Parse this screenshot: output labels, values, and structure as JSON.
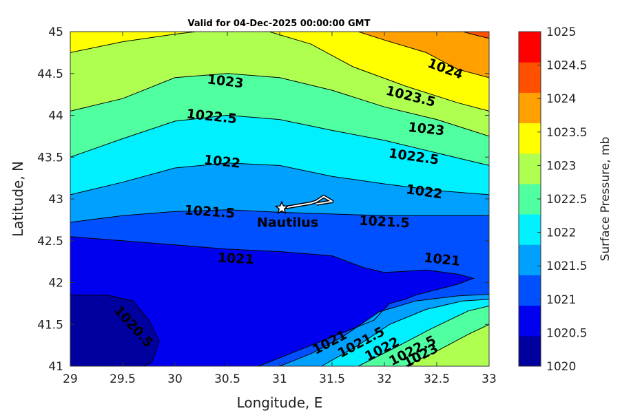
{
  "chart_data": {
    "type": "contour",
    "title": "Valid for 04-Dec-2025 00:00:00 GMT",
    "xlabel": "Longitude, E",
    "ylabel": "Latitude, N",
    "xlim": [
      29,
      33
    ],
    "ylim": [
      41,
      45
    ],
    "x_ticks": [
      "29",
      "29.5",
      "30",
      "30.5",
      "31",
      "31.5",
      "32",
      "32.5",
      "33"
    ],
    "y_ticks": [
      "41",
      "41.5",
      "42",
      "42.5",
      "43",
      "43.5",
      "44",
      "44.5",
      "45"
    ],
    "colorbar": {
      "label": "Surface Pressure, mb",
      "ticks": [
        "1020",
        "1020.5",
        "1021",
        "1021.5",
        "1022",
        "1022.5",
        "1023",
        "1023.5",
        "1024",
        "1024.5",
        "1025"
      ],
      "colors": [
        "#00009f",
        "#0000ef",
        "#0050ff",
        "#00a0ff",
        "#00f0ff",
        "#50ffa0",
        "#afff50",
        "#ffff00",
        "#ffa000",
        "#ff5000",
        "#ff0000"
      ]
    },
    "contours": [
      {
        "level": 1020.5,
        "points": [
          [
            29,
            41.85
          ],
          [
            29.35,
            41.85
          ],
          [
            29.6,
            41.78
          ],
          [
            29.75,
            41.55
          ],
          [
            29.85,
            41.3
          ],
          [
            29.78,
            41.05
          ],
          [
            29.7,
            41
          ]
        ],
        "labels": [
          {
            "text": "1020.5",
            "lon": 29.6,
            "lat": 41.47,
            "angle": 48
          }
        ]
      },
      {
        "level": 1021,
        "points": [
          [
            29,
            42.55
          ],
          [
            29.5,
            42.5
          ],
          [
            30,
            42.45
          ],
          [
            30.5,
            42.4
          ],
          [
            31,
            42.37
          ],
          [
            31.5,
            42.32
          ],
          [
            31.8,
            42.18
          ],
          [
            32,
            42.12
          ],
          [
            32.4,
            42.15
          ],
          [
            32.7,
            42.1
          ],
          [
            32.85,
            42.05
          ],
          [
            32.7,
            41.98
          ],
          [
            32.45,
            41.9
          ],
          [
            32.3,
            41.85
          ],
          [
            32.2,
            41.8
          ],
          [
            32.05,
            41.75
          ],
          [
            31.9,
            41.55
          ],
          [
            31.6,
            41.4
          ],
          [
            31.3,
            41.25
          ],
          [
            31.1,
            41.15
          ],
          [
            30.9,
            41.05
          ],
          [
            30.8,
            41
          ]
        ],
        "labels": [
          {
            "text": "1021",
            "lon": 30.58,
            "lat": 42.28,
            "angle": 3
          },
          {
            "text": "1021",
            "lon": 32.55,
            "lat": 42.27,
            "angle": 6
          },
          {
            "text": "1021",
            "lon": 31.48,
            "lat": 41.28,
            "angle": -28
          }
        ]
      },
      {
        "level": 1021.5,
        "points": [
          [
            29,
            42.72
          ],
          [
            29.5,
            42.8
          ],
          [
            30,
            42.85
          ],
          [
            30.5,
            42.87
          ],
          [
            31,
            42.84
          ],
          [
            31.5,
            42.82
          ],
          [
            32,
            42.8
          ],
          [
            32.5,
            42.8
          ],
          [
            33,
            42.8
          ]
        ],
        "labels": [
          {
            "text": "1021.5",
            "lon": 30.33,
            "lat": 42.84,
            "angle": 4
          },
          {
            "text": "1021.5",
            "lon": 32.0,
            "lat": 42.72,
            "angle": 3
          }
        ]
      },
      {
        "level": 1022,
        "points": [
          [
            29,
            43.05
          ],
          [
            29.5,
            43.2
          ],
          [
            30,
            43.37
          ],
          [
            30.5,
            43.43
          ],
          [
            31,
            43.4
          ],
          [
            31.5,
            43.27
          ],
          [
            32,
            43.18
          ],
          [
            32.5,
            43.1
          ],
          [
            33,
            43.05
          ]
        ],
        "labels": [
          {
            "text": "1022",
            "lon": 30.45,
            "lat": 43.44,
            "angle": 6
          },
          {
            "text": "1022",
            "lon": 32.38,
            "lat": 43.08,
            "angle": 8
          }
        ]
      },
      {
        "level": 1022.5,
        "points": [
          [
            29,
            43.5
          ],
          [
            29.5,
            43.72
          ],
          [
            30,
            43.93
          ],
          [
            30.5,
            44.0
          ],
          [
            31,
            43.95
          ],
          [
            31.5,
            43.82
          ],
          [
            32,
            43.7
          ],
          [
            32.5,
            43.55
          ],
          [
            33,
            43.4
          ]
        ],
        "labels": [
          {
            "text": "1022.5",
            "lon": 30.35,
            "lat": 43.98,
            "angle": 6
          },
          {
            "text": "1022.5",
            "lon": 32.28,
            "lat": 43.5,
            "angle": 8
          }
        ]
      },
      {
        "level": 1023,
        "points": [
          [
            29,
            44.05
          ],
          [
            29.5,
            44.2
          ],
          [
            30,
            44.45
          ],
          [
            30.5,
            44.5
          ],
          [
            31,
            44.45
          ],
          [
            31.5,
            44.3
          ],
          [
            32,
            44.1
          ],
          [
            32.5,
            43.95
          ],
          [
            33,
            43.75
          ]
        ],
        "labels": [
          {
            "text": "1023",
            "lon": 30.48,
            "lat": 44.4,
            "angle": 7
          },
          {
            "text": "1023",
            "lon": 32.4,
            "lat": 43.83,
            "angle": 6
          }
        ]
      },
      {
        "level": 1023.5,
        "points": [
          [
            29,
            44.75
          ],
          [
            29.5,
            44.88
          ],
          [
            30,
            44.97
          ],
          [
            30.2,
            45
          ],
          [
            30.9,
            45
          ],
          [
            31.3,
            44.85
          ],
          [
            31.7,
            44.58
          ],
          [
            32.2,
            44.35
          ],
          [
            32.7,
            44.15
          ],
          [
            33,
            44.05
          ]
        ],
        "labels": [
          {
            "text": "1023.5",
            "lon": 32.25,
            "lat": 44.22,
            "angle": 14
          }
        ]
      },
      {
        "level": 1024,
        "points": [
          [
            31.75,
            45
          ],
          [
            32.0,
            44.9
          ],
          [
            32.4,
            44.75
          ],
          [
            32.7,
            44.55
          ],
          [
            33,
            44.45
          ]
        ],
        "labels": [
          {
            "text": "1024",
            "lon": 32.58,
            "lat": 44.55,
            "angle": 20
          }
        ]
      },
      {
        "level": 1024.5,
        "points": [
          [
            32.75,
            45
          ],
          [
            32.9,
            44.95
          ],
          [
            33,
            44.92
          ]
        ],
        "labels": []
      },
      {
        "level": 1021.5,
        "points": [
          [
            31.0,
            41
          ],
          [
            31.3,
            41.15
          ],
          [
            31.6,
            41.35
          ],
          [
            31.95,
            41.65
          ],
          [
            32.3,
            41.78
          ],
          [
            32.7,
            41.84
          ],
          [
            33,
            41.86
          ]
        ],
        "labels": [
          {
            "text": "1021.5",
            "lon": 31.78,
            "lat": 41.28,
            "angle": -28
          }
        ]
      },
      {
        "level": 1022,
        "points": [
          [
            31.4,
            41
          ],
          [
            31.75,
            41.25
          ],
          [
            32.05,
            41.5
          ],
          [
            32.4,
            41.68
          ],
          [
            32.75,
            41.78
          ],
          [
            33,
            41.8
          ]
        ],
        "labels": [
          {
            "text": "1022",
            "lon": 31.98,
            "lat": 41.2,
            "angle": -27
          }
        ]
      },
      {
        "level": 1022.5,
        "points": [
          [
            31.75,
            41
          ],
          [
            32.1,
            41.22
          ],
          [
            32.45,
            41.45
          ],
          [
            32.8,
            41.66
          ],
          [
            33,
            41.72
          ]
        ],
        "labels": [
          {
            "text": "1022.5",
            "lon": 32.27,
            "lat": 41.18,
            "angle": -27
          }
        ]
      },
      {
        "level": 1023,
        "points": [
          [
            32.2,
            41
          ],
          [
            32.5,
            41.18
          ],
          [
            32.8,
            41.38
          ],
          [
            33,
            41.5
          ]
        ],
        "labels": [
          {
            "text": "1023",
            "lon": 32.35,
            "lat": 41.12,
            "angle": -27
          }
        ]
      }
    ],
    "track": {
      "points": [
        [
          31.02,
          42.89
        ],
        [
          31.3,
          42.95
        ],
        [
          31.35,
          42.97
        ],
        [
          31.42,
          43.03
        ],
        [
          31.5,
          42.97
        ],
        [
          31.35,
          42.94
        ]
      ],
      "marker": {
        "lon": 31.02,
        "lat": 42.89,
        "symbol": "star"
      },
      "label": "Nautilus"
    }
  }
}
